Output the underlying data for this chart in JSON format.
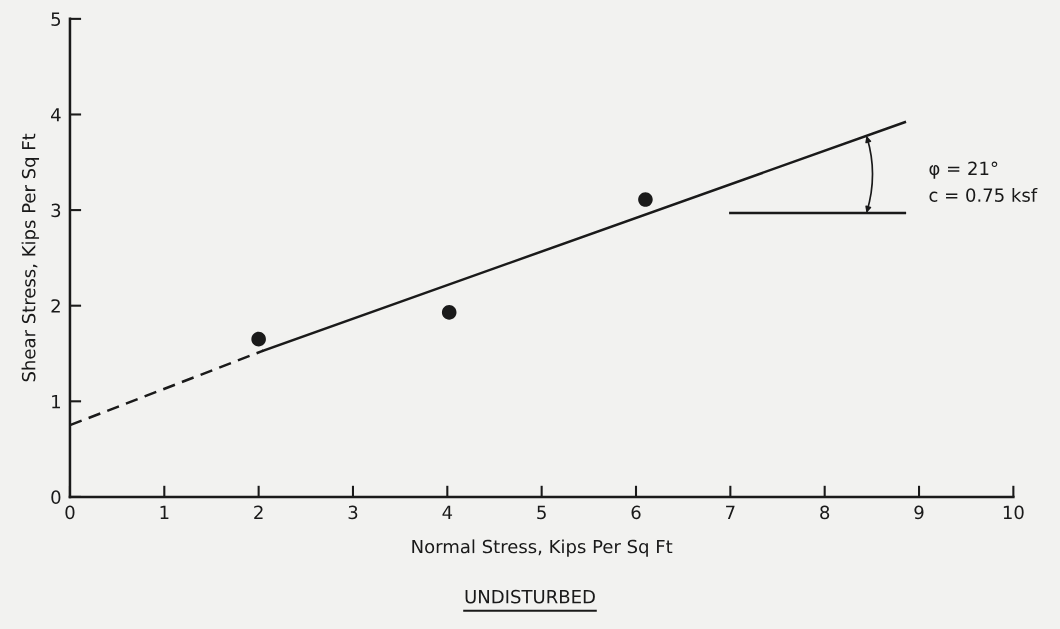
{
  "chart_data": {
    "type": "scatter",
    "xlabel": "Normal Stress, Kips Per Sq Ft",
    "ylabel": "Shear Stress, Kips Per Sq Ft",
    "xlim": [
      0,
      10
    ],
    "ylim": [
      0,
      5
    ],
    "xticks": [
      0,
      1,
      2,
      3,
      4,
      5,
      6,
      7,
      8,
      9,
      10
    ],
    "yticks": [
      0,
      1,
      2,
      3,
      4,
      5
    ],
    "grid": false,
    "legend": false,
    "series": [
      {
        "color": "#1a1a1a",
        "marker": "circle",
        "x": [
          2.0,
          4.02,
          6.1
        ],
        "values": [
          1.65,
          1.93,
          3.11
        ]
      },
      {
        "type": "line",
        "color": "#1a1a1a",
        "line_style": "dashed",
        "marker": "none",
        "x": [
          0,
          2.05
        ],
        "values": [
          0.75,
          1.53
        ]
      },
      {
        "type": "line",
        "color": "#1a1a1a",
        "line_style": "solid",
        "marker": "none",
        "x": [
          2.05,
          8.85
        ],
        "values": [
          1.53,
          3.92
        ]
      },
      {
        "type": "line",
        "color": "#1a1a1a",
        "line_style": "solid",
        "marker": "none",
        "x": [
          7.0,
          8.85
        ],
        "values": [
          2.97,
          2.97
        ]
      }
    ],
    "annotations": [
      "φ = 21°",
      "c = 0.75 ksf",
      "UNDISTURBED"
    ]
  }
}
